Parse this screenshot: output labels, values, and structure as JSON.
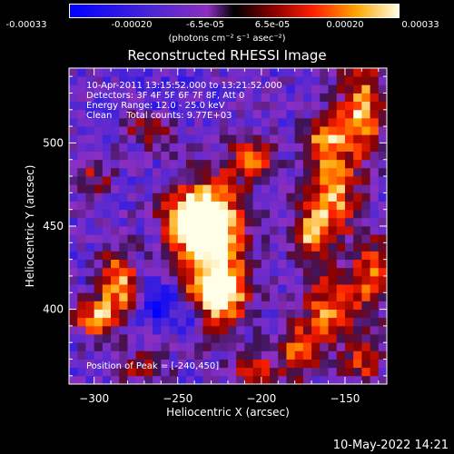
{
  "title": "Reconstructed RHESSI Image",
  "colorbar": {
    "tick_labels": [
      "-0.00033",
      "-0.00020",
      "-6.5e-05",
      "6.5e-05",
      "0.00020",
      "0.00033"
    ],
    "tick_values": [
      -0.00033,
      -0.0002,
      -6.5e-05,
      6.5e-05,
      0.0002,
      0.00033
    ],
    "range": [
      -0.00033,
      0.00033
    ],
    "unit_label": "(photons cm⁻² s⁻¹ asec⁻²)"
  },
  "header_lines": [
    "10-Apr-2011 13:15:52.000 to 13:21:52.000",
    "Detectors: 3F 4F 5F 6F 7F 8F, Att 0",
    "Energy Range: 12.0 - 25.0 keV",
    "Clean     Total counts: 9.77E+03"
  ],
  "peak_label": "Position of Peak = [-240,450]",
  "footer_date": "10-May-2022 14:21",
  "chart_data": {
    "type": "heatmap",
    "title": "Reconstructed RHESSI Image",
    "xlabel": "Heliocentric X (arcsec)",
    "ylabel": "Heliocentric Y (arcsec)",
    "xlim": [
      -315,
      -125
    ],
    "ylim": [
      355,
      545
    ],
    "x_ticks": [
      -300,
      -250,
      -200,
      -150
    ],
    "x_tick_labels": [
      "−300",
      "−250",
      "−200",
      "−150"
    ],
    "y_ticks": [
      400,
      450,
      500
    ],
    "y_tick_labels": [
      "400",
      "450",
      "500"
    ],
    "peak_position": [
      -240,
      450
    ],
    "bright_regions": [
      {
        "x": -230,
        "y": 440,
        "sx": 14,
        "sy": 28,
        "amp": 1.0
      },
      {
        "x": -240,
        "y": 455,
        "sx": 12,
        "sy": 10,
        "amp": 0.95
      },
      {
        "x": -225,
        "y": 405,
        "sx": 12,
        "sy": 12,
        "amp": 0.7
      },
      {
        "x": -285,
        "y": 415,
        "sx": 8,
        "sy": 15,
        "amp": 0.8
      },
      {
        "x": -300,
        "y": 395,
        "sx": 8,
        "sy": 8,
        "amp": 0.7
      },
      {
        "x": -158,
        "y": 470,
        "sx": 10,
        "sy": 20,
        "amp": 0.8
      },
      {
        "x": -172,
        "y": 445,
        "sx": 8,
        "sy": 12,
        "amp": 0.6
      },
      {
        "x": -140,
        "y": 520,
        "sx": 9,
        "sy": 20,
        "amp": 0.8
      },
      {
        "x": -162,
        "y": 505,
        "sx": 8,
        "sy": 9,
        "amp": 0.6
      },
      {
        "x": -160,
        "y": 400,
        "sx": 10,
        "sy": 15,
        "amp": 0.65
      },
      {
        "x": -135,
        "y": 420,
        "sx": 8,
        "sy": 20,
        "amp": 0.6
      },
      {
        "x": -178,
        "y": 375,
        "sx": 8,
        "sy": 12,
        "amp": 0.6
      },
      {
        "x": -140,
        "y": 370,
        "sx": 8,
        "sy": 10,
        "amp": 0.55
      },
      {
        "x": -205,
        "y": 490,
        "sx": 10,
        "sy": 8,
        "amp": 0.55
      },
      {
        "x": -265,
        "y": 510,
        "sx": 12,
        "sy": 8,
        "amp": 0.5
      },
      {
        "x": -300,
        "y": 480,
        "sx": 8,
        "sy": 10,
        "amp": 0.4
      },
      {
        "x": -205,
        "y": 365,
        "sx": 10,
        "sy": 8,
        "amp": 0.5
      },
      {
        "x": -270,
        "y": 365,
        "sx": 10,
        "sy": 8,
        "amp": 0.4
      }
    ],
    "dark_regions": [
      {
        "x": -262,
        "y": 405,
        "sx": 10,
        "sy": 10,
        "amp": 0.7
      },
      {
        "x": -240,
        "y": 395,
        "sx": 8,
        "sy": 8,
        "amp": 0.6
      },
      {
        "x": -255,
        "y": 520,
        "sx": 14,
        "sy": 10,
        "amp": 0.4
      }
    ]
  }
}
